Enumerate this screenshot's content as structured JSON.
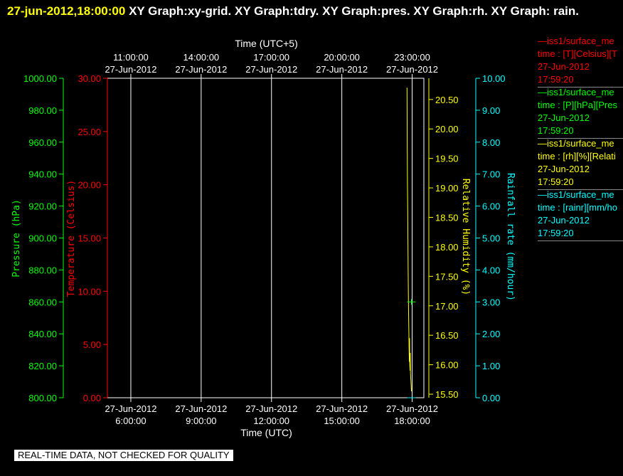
{
  "header": {
    "timestamp": "27-jun-2012,18:00:00",
    "title_text": "XY Graph:xy-grid.  XY Graph:tdry.  XY Graph:pres.  XY Graph:rh.  XY Graph: rain."
  },
  "colors": {
    "background": "#000000",
    "temperature": "#ff0000",
    "pressure": "#00ff00",
    "humidity": "#ffff00",
    "rainfall": "#00ffff",
    "axis_time": "#ffffff"
  },
  "legend": [
    {
      "line1": "—iss1/surface_me",
      "line2": "time : [T][Celsius][T",
      "line3": "27-Jun-2012",
      "line4": "17:59:20",
      "color": "#ff0000"
    },
    {
      "line1": "—iss1/surface_me",
      "line2": "time : [P][hPa][Pres",
      "line3": "27-Jun-2012",
      "line4": "17:59:20",
      "color": "#00ff00"
    },
    {
      "line1": "—iss1/surface_me",
      "line2": "time : [rh][%][Relati",
      "line3": "27-Jun-2012",
      "line4": "17:59:20",
      "color": "#ffff00"
    },
    {
      "line1": "—iss1/surface_me",
      "line2": "time : [rainr][mm/ho",
      "line3": "27-Jun-2012",
      "line4": "17:59:20",
      "color": "#00ffff"
    }
  ],
  "footer": {
    "quality_notice": "REAL-TIME DATA, NOT CHECKED FOR QUALITY"
  },
  "chart_data": {
    "type": "line",
    "x_range_utc_hours": [
      5.0,
      18.5
    ],
    "grid": true,
    "x_axis_bottom": {
      "label": "Time (UTC)",
      "ticks": [
        {
          "x": 6,
          "date": "27-Jun-2012",
          "time": "6:00:00"
        },
        {
          "x": 9,
          "date": "27-Jun-2012",
          "time": "9:00:00"
        },
        {
          "x": 12,
          "date": "27-Jun-2012",
          "time": "12:00:00"
        },
        {
          "x": 15,
          "date": "27-Jun-2012",
          "time": "15:00:00"
        },
        {
          "x": 18,
          "date": "27-Jun-2012",
          "time": "18:00:00"
        }
      ]
    },
    "x_axis_top": {
      "label": "Time (UTC+5)",
      "ticks": [
        {
          "x": 6,
          "time": "11:00:00",
          "date": "27-Jun-2012"
        },
        {
          "x": 9,
          "time": "14:00:00",
          "date": "27-Jun-2012"
        },
        {
          "x": 12,
          "time": "17:00:00",
          "date": "27-Jun-2012"
        },
        {
          "x": 15,
          "time": "20:00:00",
          "date": "27-Jun-2012"
        },
        {
          "x": 18,
          "time": "23:00:00",
          "date": "27-Jun-2012"
        }
      ]
    },
    "y_axes": [
      {
        "key": "pressure",
        "label": "Pressure (hPa)",
        "color": "#00ff00",
        "range": [
          800,
          1000
        ],
        "ticks": [
          {
            "v": 1000,
            "t": "1000.00"
          },
          {
            "v": 980,
            "t": "980.00"
          },
          {
            "v": 960,
            "t": "960.00"
          },
          {
            "v": 940,
            "t": "940.00"
          },
          {
            "v": 920,
            "t": "920.00"
          },
          {
            "v": 900,
            "t": "900.00"
          },
          {
            "v": 880,
            "t": "880.00"
          },
          {
            "v": 860,
            "t": "860.00"
          },
          {
            "v": 840,
            "t": "840.00"
          },
          {
            "v": 820,
            "t": "820.00"
          },
          {
            "v": 800,
            "t": "800.00"
          }
        ]
      },
      {
        "key": "temperature",
        "label": "Temperature (Celsius)",
        "color": "#ff0000",
        "range": [
          0,
          30
        ],
        "ticks": [
          {
            "v": 30,
            "t": "30.00"
          },
          {
            "v": 25,
            "t": "25.00"
          },
          {
            "v": 20,
            "t": "20.00"
          },
          {
            "v": 15,
            "t": "15.00"
          },
          {
            "v": 10,
            "t": "10.00"
          },
          {
            "v": 5,
            "t": "5.00"
          },
          {
            "v": 0,
            "t": "0.00"
          }
        ]
      },
      {
        "key": "humidity",
        "label": "Relative Humidity (%)",
        "color": "#ffff00",
        "range": [
          15.44,
          20.86
        ],
        "ticks": [
          {
            "v": 20.5,
            "t": "20.50"
          },
          {
            "v": 20.0,
            "t": "20.00"
          },
          {
            "v": 19.5,
            "t": "19.50"
          },
          {
            "v": 19.0,
            "t": "19.00"
          },
          {
            "v": 18.5,
            "t": "18.50"
          },
          {
            "v": 18.0,
            "t": "18.00"
          },
          {
            "v": 17.5,
            "t": "17.50"
          },
          {
            "v": 17.0,
            "t": "17.00"
          },
          {
            "v": 16.5,
            "t": "16.50"
          },
          {
            "v": 16.0,
            "t": "16.00"
          },
          {
            "v": 15.5,
            "t": "15.50"
          }
        ]
      },
      {
        "key": "rainfall",
        "label": "Rainfall rate (mm/hour)",
        "color": "#00ffff",
        "range": [
          0,
          10
        ],
        "ticks": [
          {
            "v": 10,
            "t": "10.00"
          },
          {
            "v": 9,
            "t": "9.00"
          },
          {
            "v": 8,
            "t": "8.00"
          },
          {
            "v": 7,
            "t": "7.00"
          },
          {
            "v": 6,
            "t": "6.00"
          },
          {
            "v": 5,
            "t": "5.00"
          },
          {
            "v": 4,
            "t": "4.00"
          },
          {
            "v": 3,
            "t": "3.00"
          },
          {
            "v": 2,
            "t": "2.00"
          },
          {
            "v": 1,
            "t": "1.00"
          },
          {
            "v": 0,
            "t": "0.00"
          }
        ]
      }
    ],
    "series": [
      {
        "key": "humidity",
        "color": "#ffff00",
        "points": [
          [
            17.78,
            20.7
          ],
          [
            17.79,
            19.8
          ],
          [
            17.8,
            19.1
          ],
          [
            17.81,
            18.6
          ],
          [
            17.82,
            18.1
          ],
          [
            17.83,
            17.6
          ],
          [
            17.84,
            17.2
          ],
          [
            17.85,
            16.8
          ],
          [
            17.86,
            16.55
          ],
          [
            17.87,
            16.3
          ],
          [
            17.88,
            16.05
          ],
          [
            17.89,
            16.45
          ],
          [
            17.9,
            16.0
          ],
          [
            17.91,
            15.9
          ],
          [
            17.92,
            16.2
          ],
          [
            17.93,
            15.85
          ],
          [
            17.95,
            15.7
          ],
          [
            17.97,
            15.55
          ]
        ]
      },
      {
        "key": "pressure",
        "color": "#00ff00",
        "points": [
          [
            17.97,
            860
          ]
        ]
      },
      {
        "key": "rainfall",
        "color": "#00ffff",
        "points": [
          [
            17.97,
            0
          ]
        ]
      }
    ]
  }
}
